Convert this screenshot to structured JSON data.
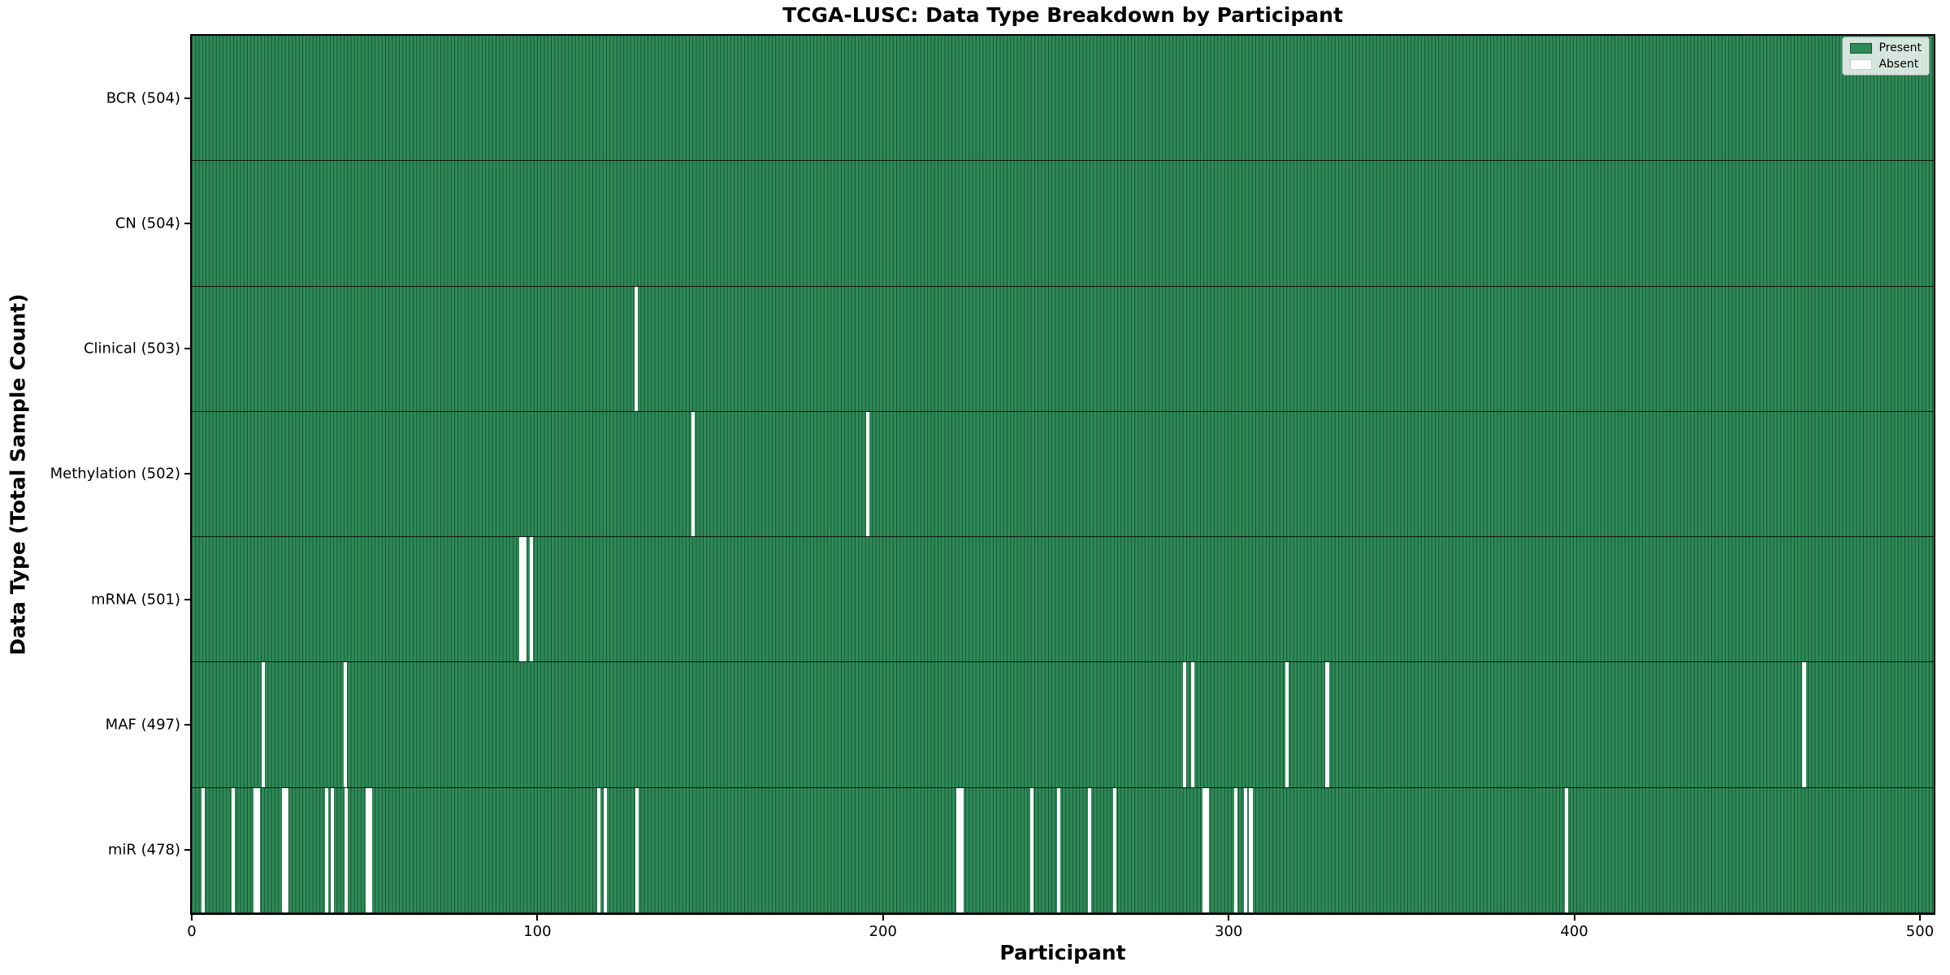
{
  "title": "TCGA-LUSC: Data Type Breakdown by Participant",
  "axes": {
    "x_label": "Participant",
    "y_label": "Data Type (Total Sample Count)"
  },
  "legend": {
    "items": [
      {
        "label": "Present",
        "color": "#2e8b57"
      },
      {
        "label": "Absent",
        "color": "#ffffff"
      }
    ]
  },
  "colors": {
    "present": "#2e8b57",
    "bar_edge": "#1b5236",
    "absent": "#ffffff",
    "row_divider": "#141414",
    "spine": "#000000"
  },
  "chart_data": {
    "type": "heatmap",
    "title": "TCGA-LUSC: Data Type Breakdown by Participant",
    "xlabel": "Participant",
    "ylabel": "Data Type (Total Sample Count)",
    "x_range": [
      0,
      504
    ],
    "x_tick_values": [
      0,
      100,
      200,
      300,
      400,
      500
    ],
    "x_tick_labels": [
      "0",
      "100",
      "200",
      "300",
      "400",
      "500"
    ],
    "n_participants": 504,
    "legend_entries": [
      "Present",
      "Absent"
    ],
    "grid": false,
    "legend_position": "upper right",
    "rows": [
      {
        "label": "BCR (504)",
        "data_type": "BCR",
        "total_samples": 504,
        "absent_count": 0,
        "absent_gaps": []
      },
      {
        "label": "CN (504)",
        "data_type": "CN",
        "total_samples": 504,
        "absent_count": 0,
        "absent_gaps": []
      },
      {
        "label": "Clinical (503)",
        "data_type": "Clinical",
        "total_samples": 503,
        "absent_count": 1,
        "absent_gaps": [
          {
            "pos": 128,
            "w": 1
          }
        ]
      },
      {
        "label": "Methylation (502)",
        "data_type": "Methylation",
        "total_samples": 502,
        "absent_count": 2,
        "absent_gaps": [
          {
            "pos": 144.5,
            "w": 1
          },
          {
            "pos": 195,
            "w": 1
          }
        ]
      },
      {
        "label": "mRNA (501)",
        "data_type": "mRNA",
        "total_samples": 501,
        "absent_count": 3,
        "absent_gaps": [
          {
            "pos": 94.8,
            "w": 2
          },
          {
            "pos": 97.8,
            "w": 1
          }
        ]
      },
      {
        "label": "MAF (497)",
        "data_type": "MAF",
        "total_samples": 497,
        "absent_count": 7,
        "absent_gaps": [
          {
            "pos": 20.2,
            "w": 1
          },
          {
            "pos": 43.9,
            "w": 1
          },
          {
            "pos": 286.7,
            "w": 1
          },
          {
            "pos": 289.1,
            "w": 1
          },
          {
            "pos": 316.3,
            "w": 1
          },
          {
            "pos": 328,
            "w": 1
          },
          {
            "pos": 466,
            "w": 1
          }
        ]
      },
      {
        "label": "miR (478)",
        "data_type": "miR",
        "total_samples": 478,
        "absent_count": 26,
        "absent_gaps": [
          {
            "pos": 2.8,
            "w": 1
          },
          {
            "pos": 11.5,
            "w": 1
          },
          {
            "pos": 17.8,
            "w": 2
          },
          {
            "pos": 26,
            "w": 2
          },
          {
            "pos": 38.5,
            "w": 1
          },
          {
            "pos": 40.1,
            "w": 1
          },
          {
            "pos": 44.2,
            "w": 1
          },
          {
            "pos": 50.2,
            "w": 2
          },
          {
            "pos": 117.3,
            "w": 1
          },
          {
            "pos": 119.2,
            "w": 1
          },
          {
            "pos": 128.3,
            "w": 1
          },
          {
            "pos": 221.3,
            "w": 2
          },
          {
            "pos": 242.5,
            "w": 1
          },
          {
            "pos": 250.4,
            "w": 1
          },
          {
            "pos": 259.3,
            "w": 1
          },
          {
            "pos": 266.5,
            "w": 1
          },
          {
            "pos": 292.4,
            "w": 2
          },
          {
            "pos": 301.5,
            "w": 1
          },
          {
            "pos": 304.4,
            "w": 1
          },
          {
            "pos": 305.9,
            "w": 1
          },
          {
            "pos": 397.3,
            "w": 1
          }
        ]
      }
    ]
  }
}
